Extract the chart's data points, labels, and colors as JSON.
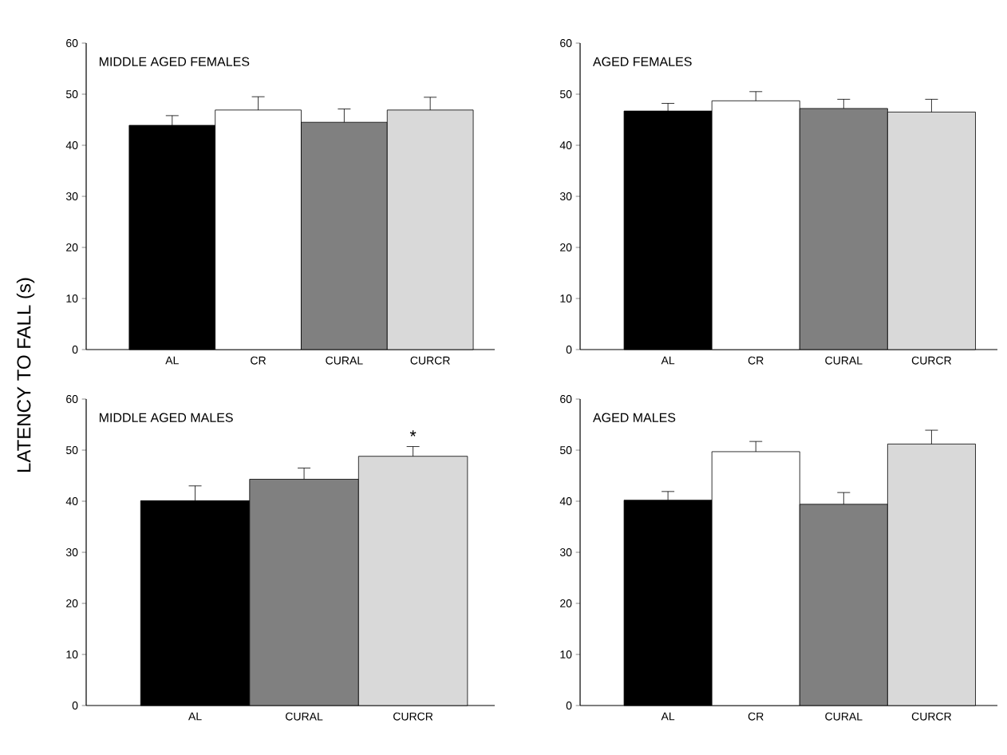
{
  "chart_data": [
    {
      "type": "bar",
      "title": "MIDDLE AGED FEMALES",
      "ylabel": "LATENCY TO FALL (s)",
      "categories": [
        "AL",
        "CR",
        "CURAL",
        "CURCR"
      ],
      "values": [
        43.9,
        46.9,
        44.5,
        46.9
      ],
      "errors": [
        1.9,
        2.6,
        2.6,
        2.5
      ],
      "colors": [
        "#000000",
        "#ffffff",
        "#808080",
        "#d9d9d9"
      ],
      "ylim": [
        0,
        60
      ],
      "yticks": [
        0,
        10,
        20,
        30,
        40,
        50,
        60
      ]
    },
    {
      "type": "bar",
      "title": "AGED FEMALES",
      "categories": [
        "AL",
        "CR",
        "CURAL",
        "CURCR"
      ],
      "values": [
        46.7,
        48.7,
        47.2,
        46.5
      ],
      "errors": [
        1.5,
        1.8,
        1.8,
        2.5
      ],
      "colors": [
        "#000000",
        "#ffffff",
        "#808080",
        "#d9d9d9"
      ],
      "ylim": [
        0,
        60
      ],
      "yticks": [
        0,
        10,
        20,
        30,
        40,
        50,
        60
      ]
    },
    {
      "type": "bar",
      "title": "MIDDLE AGED MALES",
      "categories": [
        "AL",
        "CURAL",
        "CURCR"
      ],
      "values": [
        40.1,
        44.3,
        48.8
      ],
      "errors": [
        2.9,
        2.2,
        1.9
      ],
      "colors": [
        "#000000",
        "#808080",
        "#d9d9d9"
      ],
      "ylim": [
        0,
        60
      ],
      "yticks": [
        0,
        10,
        20,
        30,
        40,
        50,
        60
      ],
      "annotations": [
        "*"
      ]
    },
    {
      "type": "bar",
      "title": "AGED MALES",
      "categories": [
        "AL",
        "CR",
        "CURAL",
        "CURCR"
      ],
      "values": [
        40.2,
        49.7,
        39.4,
        51.2
      ],
      "errors": [
        1.7,
        2.0,
        2.3,
        2.7
      ],
      "colors": [
        "#000000",
        "#ffffff",
        "#808080",
        "#d9d9d9"
      ],
      "ylim": [
        0,
        60
      ],
      "yticks": [
        0,
        10,
        20,
        30,
        40,
        50,
        60
      ]
    }
  ]
}
